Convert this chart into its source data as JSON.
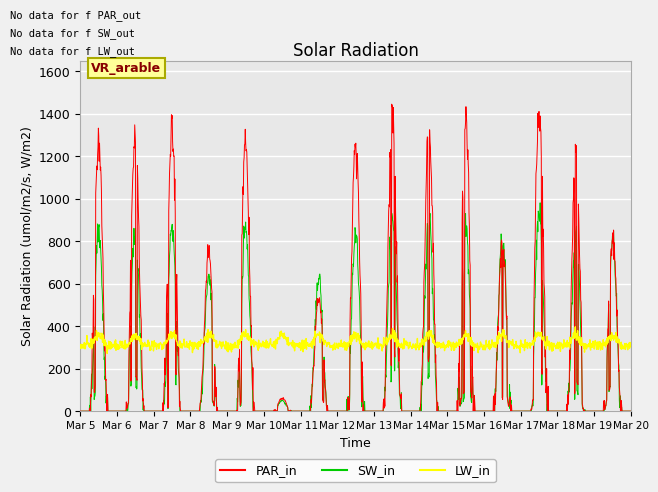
{
  "title": "Solar Radiation",
  "ylabel": "Solar Radiation (umol/m2/s, W/m2)",
  "xlabel": "Time",
  "ylim": [
    0,
    1650
  ],
  "xlim": [
    0,
    15
  ],
  "plot_bg_color": "#e8e8e8",
  "fig_bg_color": "#f0f0f0",
  "grid_color": "#d0d0d0",
  "annotations": [
    "No data for f PAR_out",
    "No data for f SW_out",
    "No data for f LW_out"
  ],
  "legend_box_label": "VR_arable",
  "xtick_labels": [
    "Mar 5",
    "Mar 6",
    "Mar 7",
    "Mar 8",
    "Mar 9",
    "Mar 10",
    "Mar 11",
    "Mar 12",
    "Mar 13",
    "Mar 14",
    "Mar 15",
    "Mar 16",
    "Mar 17",
    "Mar 18",
    "Mar 19",
    "Mar 20"
  ],
  "legend_items": [
    "PAR_in",
    "SW_in",
    "LW_in"
  ],
  "legend_colors": [
    "#ff0000",
    "#00cc00",
    "#ffff00"
  ],
  "title_fontsize": 12,
  "axis_label_fontsize": 9,
  "par_peaks": [
    1280,
    1310,
    1310,
    740,
    1260,
    60,
    540,
    1250,
    1400,
    1350,
    1350,
    780,
    1410,
    1240,
    820
  ],
  "sw_peaks": [
    860,
    870,
    870,
    620,
    860,
    50,
    630,
    830,
    930,
    900,
    890,
    820,
    930,
    850,
    810
  ],
  "lw_base": 310,
  "lw_amplitude": 30,
  "n_days": 15,
  "n_per_day": 96
}
